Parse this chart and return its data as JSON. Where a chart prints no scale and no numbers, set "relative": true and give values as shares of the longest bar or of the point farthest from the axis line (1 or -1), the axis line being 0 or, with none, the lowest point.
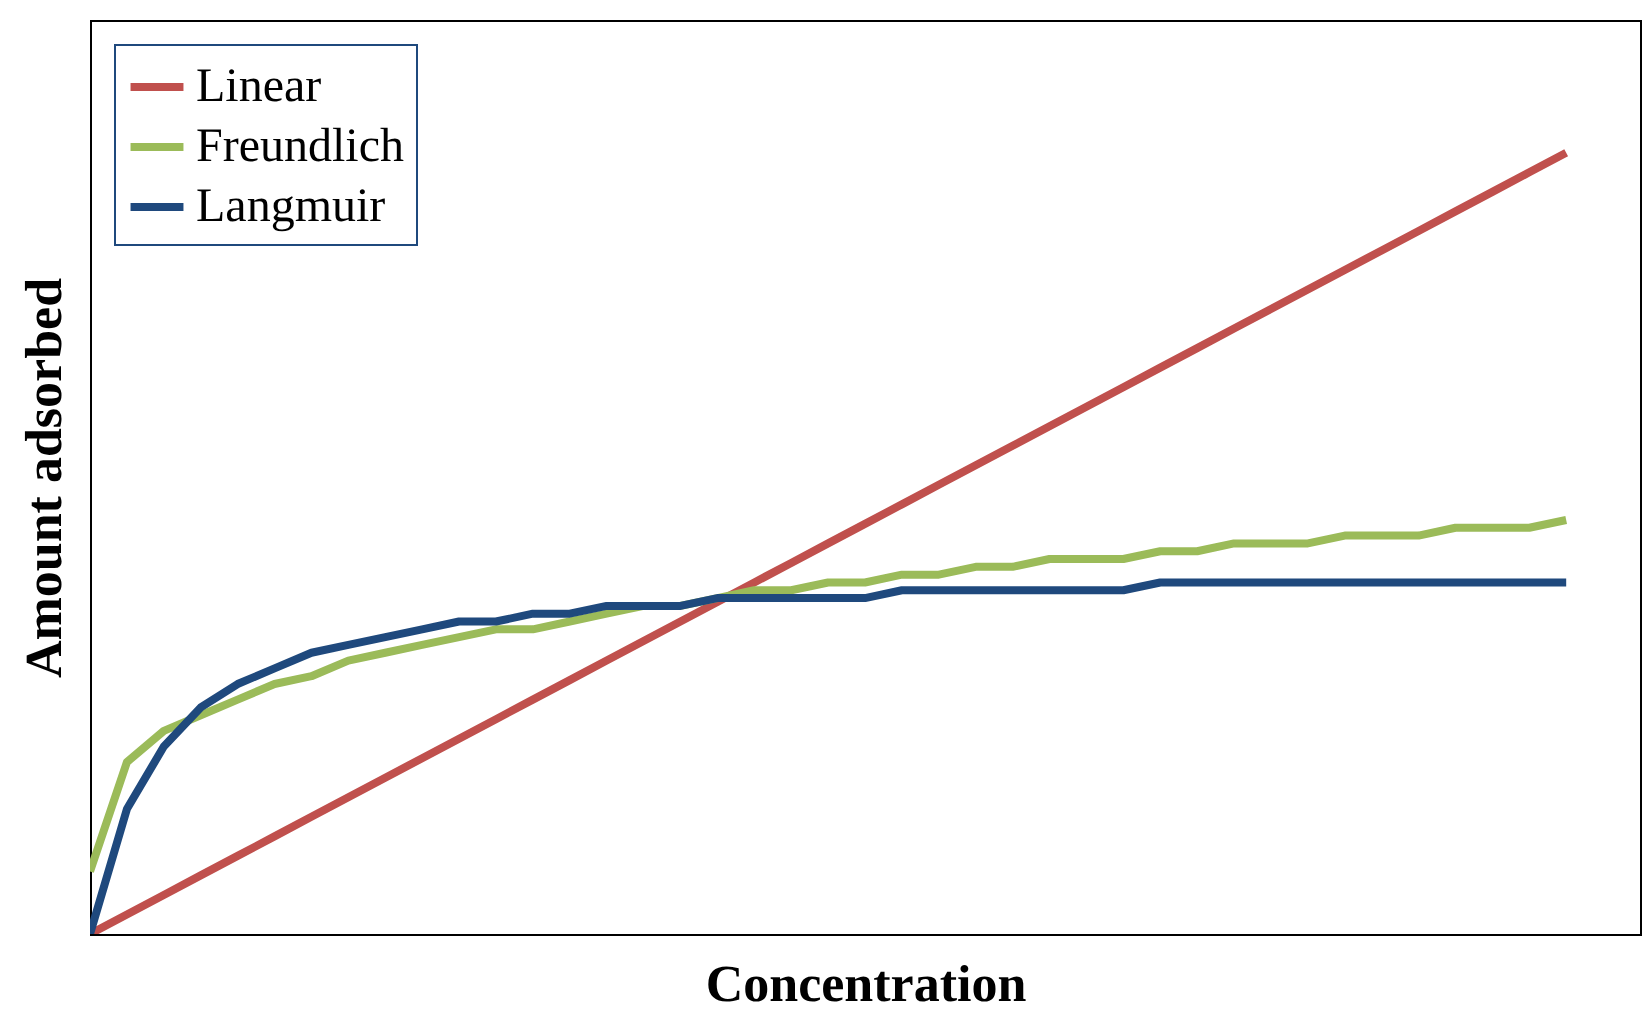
{
  "chart_data": {
    "type": "line",
    "relative": true,
    "xlabel": "Concentration",
    "ylabel": "Amount adsorbed",
    "legend": "top left",
    "categories": [
      null,
      null,
      null,
      null,
      null,
      null,
      null,
      null,
      null,
      null,
      null,
      null,
      null,
      null,
      null,
      null,
      null,
      null,
      null,
      null,
      null,
      null,
      null,
      null,
      null,
      null,
      null,
      null,
      null,
      null,
      null,
      null,
      null,
      null,
      null,
      null,
      null,
      null,
      null,
      null,
      null,
      null,
      null
    ],
    "series": [
      {
        "name": "Linear",
        "color": "#c0504d",
        "values": [
          0,
          0.025,
          0.05,
          0.075,
          0.1,
          0.125,
          0.15,
          0.175,
          0.2,
          0.225,
          0.25,
          0.275,
          0.3,
          0.325,
          0.35,
          0.375,
          0.4,
          0.425,
          0.45,
          0.475,
          0.5,
          0.525,
          0.55,
          0.575,
          0.6,
          0.625,
          0.65,
          0.675,
          0.7,
          0.725,
          0.75,
          0.775,
          0.8,
          0.825,
          0.85,
          0.875,
          0.9,
          0.925,
          0.95,
          0.975,
          1,
          null,
          null
        ]
      },
      {
        "name": "Freundlich",
        "color": "#9bbb59",
        "values": [
          0.08,
          0.22,
          0.26,
          0.28,
          0.3,
          0.32,
          0.33,
          0.35,
          0.36,
          0.37,
          0.38,
          0.39,
          0.39,
          0.4,
          0.41,
          0.42,
          0.42,
          0.43,
          0.44,
          0.44,
          0.45,
          0.45,
          0.46,
          0.46,
          0.47,
          0.47,
          0.48,
          0.48,
          0.48,
          0.49,
          0.49,
          0.5,
          0.5,
          0.5,
          0.51,
          0.51,
          0.51,
          0.52,
          0.52,
          0.52,
          0.53,
          null,
          null
        ]
      },
      {
        "name": "Langmuir",
        "color": "#1f497d",
        "values": [
          0,
          0.16,
          0.24,
          0.29,
          0.32,
          0.34,
          0.36,
          0.37,
          0.38,
          0.39,
          0.4,
          0.4,
          0.41,
          0.41,
          0.42,
          0.42,
          0.42,
          0.43,
          0.43,
          0.43,
          0.43,
          0.43,
          0.44,
          0.44,
          0.44,
          0.44,
          0.44,
          0.44,
          0.44,
          0.45,
          0.45,
          0.45,
          0.45,
          0.45,
          0.45,
          0.45,
          0.45,
          0.45,
          0.45,
          0.45,
          0.45,
          null,
          null
        ]
      }
    ]
  }
}
